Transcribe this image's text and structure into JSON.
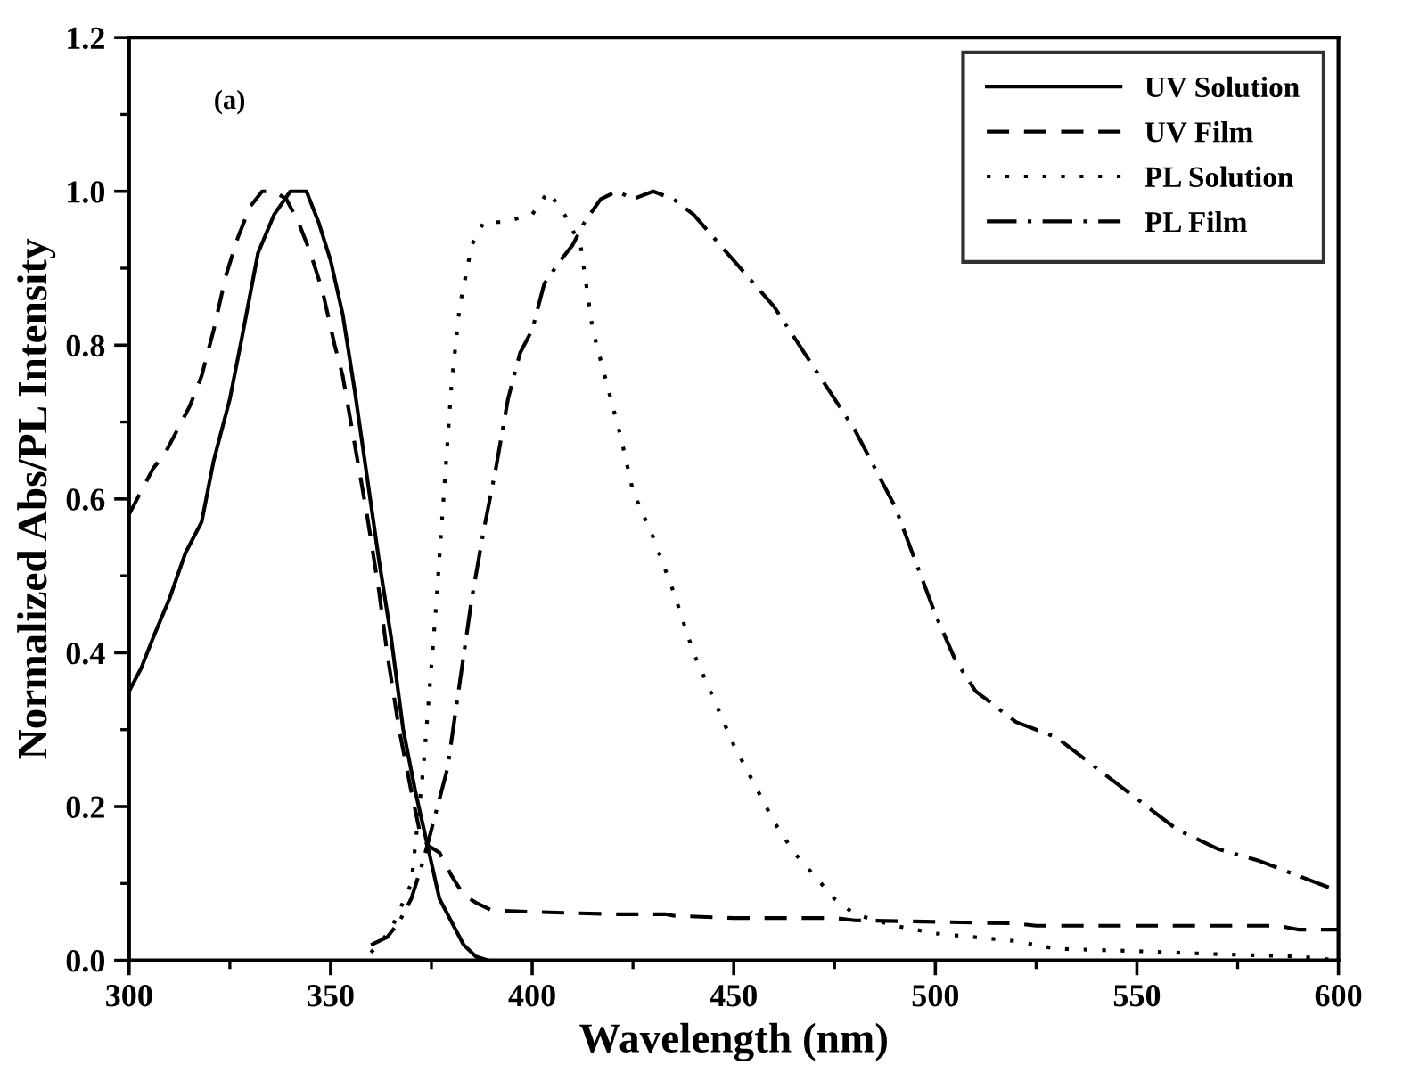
{
  "chart_data": {
    "type": "line",
    "xlabel": "Wavelength (nm)",
    "ylabel": "Normalized Abs/PL Intensity",
    "annotations": [
      "(a)"
    ],
    "xlim": [
      300,
      600
    ],
    "ylim": [
      0,
      1.2
    ],
    "xticks": [
      300,
      {
        "value": 325,
        "label": null
      },
      350,
      {
        "value": 375,
        "label": null
      },
      400,
      {
        "value": 425,
        "label": null
      },
      450,
      {
        "value": 475,
        "label": null
      },
      500,
      {
        "value": 525,
        "label": null
      },
      550,
      {
        "value": 575,
        "label": null
      },
      600
    ],
    "yticks": [
      {
        "value": 0,
        "label": "0.0"
      },
      {
        "value": 0.1,
        "label": null
      },
      0.2,
      {
        "value": 0.3,
        "label": null
      },
      0.4,
      {
        "value": 0.5,
        "label": null
      },
      0.6,
      {
        "value": 0.7,
        "label": null
      },
      0.8,
      {
        "value": 0.9,
        "label": null
      },
      {
        "value": 1.0,
        "label": "1.0"
      },
      {
        "value": 1.1,
        "label": null
      },
      1.2
    ],
    "legend": "top right",
    "grid": false,
    "series": [
      {
        "name": "UV Solution",
        "color": "#000000",
        "line_style": "solid",
        "x": [
          300,
          303,
          306,
          310,
          314,
          318,
          321,
          325,
          328,
          332,
          336,
          340,
          344,
          347,
          350,
          353,
          356,
          359,
          362,
          365,
          368,
          371,
          374,
          377,
          380,
          383,
          386,
          389
        ],
        "values": [
          0.35,
          0.38,
          0.42,
          0.47,
          0.53,
          0.57,
          0.65,
          0.73,
          0.81,
          0.92,
          0.97,
          1.0,
          1.0,
          0.96,
          0.91,
          0.84,
          0.74,
          0.63,
          0.52,
          0.42,
          0.3,
          0.22,
          0.15,
          0.08,
          0.05,
          0.02,
          0.005,
          0.0
        ]
      },
      {
        "name": "UV Film",
        "color": "#000000",
        "line_style": "dashed",
        "x": [
          300,
          302,
          306,
          309,
          312,
          315,
          318,
          321,
          324,
          327,
          330,
          333,
          336,
          339,
          342,
          345,
          348,
          351,
          353,
          356,
          359,
          362,
          364,
          367,
          370,
          372,
          374,
          377,
          380,
          383,
          386,
          390,
          400,
          420,
          433,
          435,
          450,
          475,
          480,
          500,
          520,
          525,
          560,
          585,
          590,
          600
        ],
        "values": [
          0.58,
          0.6,
          0.64,
          0.66,
          0.69,
          0.72,
          0.76,
          0.82,
          0.89,
          0.94,
          0.98,
          1.0,
          1.0,
          0.99,
          0.96,
          0.92,
          0.87,
          0.8,
          0.76,
          0.67,
          0.58,
          0.48,
          0.4,
          0.3,
          0.22,
          0.17,
          0.15,
          0.14,
          0.11,
          0.085,
          0.075,
          0.065,
          0.063,
          0.06,
          0.06,
          0.058,
          0.055,
          0.055,
          0.052,
          0.05,
          0.048,
          0.045,
          0.045,
          0.045,
          0.04,
          0.04
        ]
      },
      {
        "name": "PL Solution",
        "color": "#000000",
        "line_style": "dotted",
        "x": [
          360,
          365,
          370,
          373,
          376,
          378,
          380,
          382,
          385,
          388,
          393,
          400,
          404,
          408,
          412,
          415,
          418,
          422,
          425,
          430,
          435,
          440,
          445,
          450,
          455,
          460,
          465,
          470,
          475,
          480,
          490,
          500,
          510,
          520,
          530,
          550,
          570,
          590,
          600
        ],
        "values": [
          0.01,
          0.04,
          0.1,
          0.25,
          0.45,
          0.6,
          0.75,
          0.85,
          0.93,
          0.96,
          0.96,
          0.97,
          1.0,
          0.97,
          0.93,
          0.82,
          0.76,
          0.68,
          0.61,
          0.55,
          0.48,
          0.4,
          0.34,
          0.28,
          0.23,
          0.18,
          0.14,
          0.11,
          0.08,
          0.06,
          0.045,
          0.035,
          0.03,
          0.025,
          0.015,
          0.012,
          0.008,
          0.005,
          0.0
        ]
      },
      {
        "name": "PL Film",
        "color": "#000000",
        "line_style": "dashdot",
        "x": [
          360,
          364,
          367,
          370,
          373,
          376,
          379,
          382,
          385,
          388,
          391,
          394,
          397,
          400,
          403,
          407,
          410,
          413,
          417,
          421,
          425,
          430,
          435,
          440,
          445,
          450,
          455,
          460,
          465,
          470,
          475,
          480,
          485,
          490,
          495,
          500,
          505,
          510,
          515,
          520,
          530,
          535,
          540,
          545,
          550,
          560,
          570,
          580,
          590,
          600
        ],
        "values": [
          0.02,
          0.03,
          0.05,
          0.08,
          0.13,
          0.19,
          0.25,
          0.36,
          0.47,
          0.56,
          0.64,
          0.73,
          0.79,
          0.82,
          0.88,
          0.91,
          0.93,
          0.96,
          0.99,
          1.0,
          0.99,
          1.0,
          0.99,
          0.97,
          0.94,
          0.91,
          0.88,
          0.85,
          0.81,
          0.77,
          0.73,
          0.69,
          0.64,
          0.59,
          0.52,
          0.45,
          0.39,
          0.35,
          0.33,
          0.31,
          0.29,
          0.27,
          0.25,
          0.23,
          0.21,
          0.17,
          0.145,
          0.13,
          0.11,
          0.09
        ]
      }
    ]
  }
}
